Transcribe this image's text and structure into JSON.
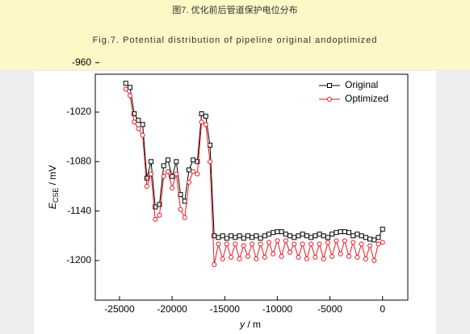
{
  "caption": {
    "zh": "图7. 优化前后管道保护电位分布",
    "en": "Fig.7. Potential distribution of pipeline original andoptimized"
  },
  "chart_data": {
    "type": "line",
    "x_label": {
      "symbol": "y",
      "unit": " / m"
    },
    "y_label": {
      "symbol": "E",
      "subscript": "CSE",
      "unit": " / mV"
    },
    "x": [
      -24400,
      -24000,
      -23600,
      -23200,
      -22800,
      -22400,
      -22000,
      -21600,
      -21200,
      -20800,
      -20400,
      -20000,
      -19600,
      -19200,
      -18800,
      -18400,
      -18000,
      -17600,
      -17200,
      -16800,
      -16400,
      -16000,
      -15600,
      -15200,
      -14800,
      -14400,
      -14000,
      -13600,
      -13200,
      -12800,
      -12400,
      -12000,
      -11600,
      -11200,
      -10800,
      -10400,
      -10000,
      -9600,
      -9200,
      -8800,
      -8400,
      -8000,
      -7600,
      -7200,
      -6800,
      -6400,
      -6000,
      -5600,
      -5200,
      -4800,
      -4400,
      -4000,
      -3600,
      -3200,
      -2800,
      -2400,
      -2000,
      -1600,
      -1200,
      -800,
      -400,
      0
    ],
    "series": [
      {
        "name": "Original",
        "color": "#000000",
        "marker": "square",
        "values": [
          -985,
          -990,
          -1022,
          -1030,
          -1035,
          -1100,
          -1080,
          -1135,
          -1132,
          -1085,
          -1078,
          -1098,
          -1080,
          -1120,
          -1128,
          -1090,
          -1078,
          -1080,
          -1022,
          -1025,
          -1060,
          -1170,
          -1172,
          -1170,
          -1173,
          -1170,
          -1172,
          -1170,
          -1173,
          -1170,
          -1172,
          -1170,
          -1173,
          -1170,
          -1168,
          -1166,
          -1165,
          -1165,
          -1168,
          -1170,
          -1172,
          -1170,
          -1168,
          -1170,
          -1172,
          -1170,
          -1168,
          -1170,
          -1172,
          -1168,
          -1166,
          -1165,
          -1165,
          -1166,
          -1170,
          -1168,
          -1170,
          -1172,
          -1174,
          -1175,
          -1172,
          -1162
        ]
      },
      {
        "name": "Optimized",
        "color": "#e8141e",
        "marker": "circle",
        "values": [
          -992,
          -1000,
          -1032,
          -1040,
          -1048,
          -1110,
          -1095,
          -1150,
          -1145,
          -1098,
          -1092,
          -1112,
          -1095,
          -1138,
          -1148,
          -1105,
          -1092,
          -1095,
          -1032,
          -1035,
          -1080,
          -1205,
          -1180,
          -1198,
          -1180,
          -1196,
          -1180,
          -1198,
          -1182,
          -1195,
          -1180,
          -1198,
          -1180,
          -1196,
          -1178,
          -1192,
          -1176,
          -1195,
          -1176,
          -1190,
          -1180,
          -1196,
          -1180,
          -1198,
          -1180,
          -1196,
          -1180,
          -1198,
          -1178,
          -1195,
          -1176,
          -1192,
          -1176,
          -1195,
          -1178,
          -1196,
          -1180,
          -1198,
          -1182,
          -1200,
          -1180,
          -1178
        ]
      }
    ],
    "xlim": [
      -27300,
      2400
    ],
    "ylim": [
      -1248,
      -974
    ],
    "xticks": [
      -25000,
      -20000,
      -15000,
      -10000,
      -5000,
      0
    ],
    "yticks": [
      -960,
      -1020,
      -1080,
      -1140,
      -1200
    ],
    "legend": "upper right"
  }
}
